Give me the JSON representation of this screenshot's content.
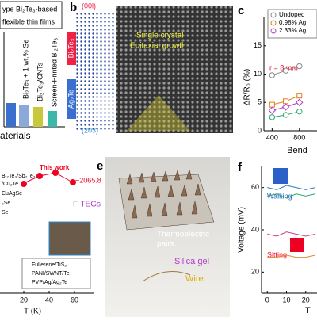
{
  "panel_a": {
    "title_lines": [
      "ype Bi₂Te₃-based",
      "flexible thin films"
    ],
    "bar_labels": [
      "Bi₂Te₃ + 1 wt.% Se",
      "Bi₂Te₃/CNTs",
      "Screen-Printed Bi₂Te₃"
    ],
    "x_label": "aterials"
  },
  "panel_b": {
    "label": "b",
    "top_plane": "(00l)",
    "bottom_plane": "(203)",
    "layer_top": "Bi₂Te₃",
    "layer_bottom": "Ag₂Te",
    "annotation": [
      "Single crystal",
      "Epitaxial growth"
    ]
  },
  "panel_c": {
    "label": "c",
    "type": "line",
    "y_label": "ΔR/R₀ (%)",
    "x_label": "Bend",
    "annotation": "r = 8 mm",
    "x": [
      400,
      600,
      800
    ],
    "xlim": [
      280,
      1000
    ],
    "xticks": [
      400,
      800
    ],
    "ylim": [
      0,
      20
    ],
    "yticks": [
      0,
      5,
      10,
      15
    ],
    "series": [
      {
        "name": "Undoped",
        "color": "#888888",
        "marker": "circle",
        "values": [
          9.8,
          10.6,
          11.4
        ]
      },
      {
        "name": "0.98% Ag",
        "color": "#e07b1a",
        "marker": "square",
        "values": [
          4.6,
          5.2,
          6.2
        ]
      },
      {
        "name": "2.33% Ag",
        "color": "#b03cc8",
        "marker": "diamond",
        "values": [
          3.6,
          4.2,
          5.0
        ]
      },
      {
        "name": null,
        "color": "#2aa86a",
        "marker": "circle",
        "values": [
          2.4,
          2.8,
          3.4
        ]
      }
    ]
  },
  "panel_d": {
    "label_lines": [
      "Bi₂Te₃/Sb₂Te₃",
      "/Cu₂Te",
      "CuAgSe",
      "₂Se",
      "Se"
    ],
    "this_work": "This work",
    "peak": "~2065.8",
    "group": "F-TEGs",
    "legend": [
      "Fullerene/TiS₂",
      "PANI/SWNT/Te",
      "PVP/Ag/Ag₂Te"
    ],
    "xticks": [
      20,
      40,
      60
    ],
    "x_label": "T (K)"
  },
  "panel_e": {
    "label": "e",
    "labels": [
      "Thermoelectric",
      "pairs",
      "Silica gel",
      "Wire"
    ]
  },
  "panel_f": {
    "label": "f",
    "type": "line",
    "y_label": "Voltage (mV)",
    "x_label": "T",
    "x": [
      0,
      5,
      10,
      15,
      20,
      25
    ],
    "xlim": [
      -3,
      30
    ],
    "xticks": [
      0,
      10,
      20
    ],
    "ylim": [
      10,
      70
    ],
    "yticks": [
      20,
      40,
      60
    ],
    "annotations": [
      "Walking",
      "Sitting"
    ],
    "series": [
      {
        "name": null,
        "color": "#2a7ad0",
        "values": [
          60,
          59,
          61,
          60,
          59,
          60
        ]
      },
      {
        "name": null,
        "color": "#2aa86a",
        "values": [
          56,
          57,
          55,
          57,
          56,
          57
        ]
      },
      {
        "name": null,
        "color": "#d23a8a",
        "values": [
          38,
          37,
          39,
          38,
          37,
          38
        ]
      },
      {
        "name": null,
        "color": "#e08a30",
        "values": [
          27,
          27,
          28,
          27,
          27,
          28
        ]
      }
    ]
  }
}
